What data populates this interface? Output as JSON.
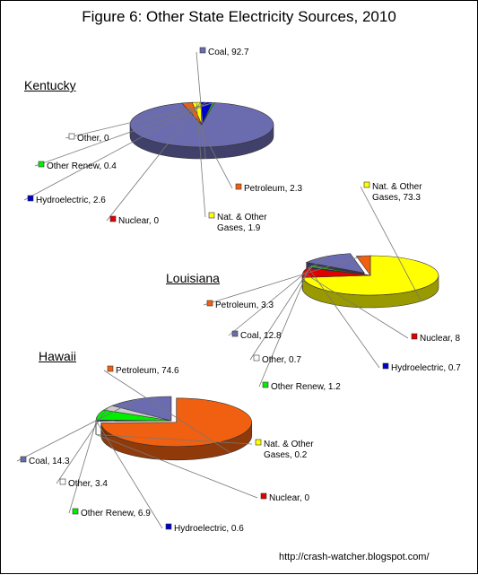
{
  "title": "Figure 6: Other State Electricity Sources, 2010",
  "footer": "http://crash-watcher.blogspot.com/",
  "colors": {
    "Coal": "#6b6bb0",
    "Petroleum": "#f06010",
    "Nat. & Other Gases": "#ffff00",
    "Nuclear": "#e00000",
    "Hydroelectric": "#0000cc",
    "Other Renew": "#00ee00",
    "Other": "#cccccc"
  },
  "chart_data": [
    {
      "type": "pie",
      "title": "Kentucky",
      "series": [
        {
          "name": "Coal",
          "value": 92.7,
          "label": "Coal, 92.7"
        },
        {
          "name": "Petroleum",
          "value": 2.3,
          "label": "Petroleum, 2.3"
        },
        {
          "name": "Nat. & Other Gases",
          "value": 1.9,
          "label": "Nat. & Other Gases, 1.9"
        },
        {
          "name": "Nuclear",
          "value": 0,
          "label": "Nuclear, 0"
        },
        {
          "name": "Hydroelectric",
          "value": 2.6,
          "label": "Hydroelectric, 2.6"
        },
        {
          "name": "Other Renew",
          "value": 0.4,
          "label": "Other Renew, 0.4"
        },
        {
          "name": "Other",
          "value": 0,
          "label": "Other, 0"
        }
      ]
    },
    {
      "type": "pie",
      "title": "Louisiana",
      "series": [
        {
          "name": "Nat. & Other Gases",
          "value": 73.3,
          "label": "Nat. & Other Gases, 73.3"
        },
        {
          "name": "Nuclear",
          "value": 8,
          "label": "Nuclear, 8"
        },
        {
          "name": "Hydroelectric",
          "value": 0.7,
          "label": "Hydroelectric, 0.7"
        },
        {
          "name": "Other Renew",
          "value": 1.2,
          "label": "Other Renew, 1.2"
        },
        {
          "name": "Other",
          "value": 0.7,
          "label": "Other, 0.7"
        },
        {
          "name": "Coal",
          "value": 12.8,
          "label": "Coal, 12.8"
        },
        {
          "name": "Petroleum",
          "value": 3.3,
          "label": "Petroleum, 3.3"
        }
      ]
    },
    {
      "type": "pie",
      "title": "Hawaii",
      "series": [
        {
          "name": "Petroleum",
          "value": 74.6,
          "label": "Petroleum, 74.6"
        },
        {
          "name": "Nat. & Other Gases",
          "value": 0.2,
          "label": "Nat. & Other Gases, 0.2"
        },
        {
          "name": "Nuclear",
          "value": 0,
          "label": "Nuclear, 0"
        },
        {
          "name": "Hydroelectric",
          "value": 0.6,
          "label": "Hydroelectric, 0.6"
        },
        {
          "name": "Other Renew",
          "value": 6.9,
          "label": "Other Renew, 6.9"
        },
        {
          "name": "Other",
          "value": 3.4,
          "label": "Other, 3.4"
        },
        {
          "name": "Coal",
          "value": 14.3,
          "label": "Coal, 14.3"
        }
      ]
    }
  ]
}
